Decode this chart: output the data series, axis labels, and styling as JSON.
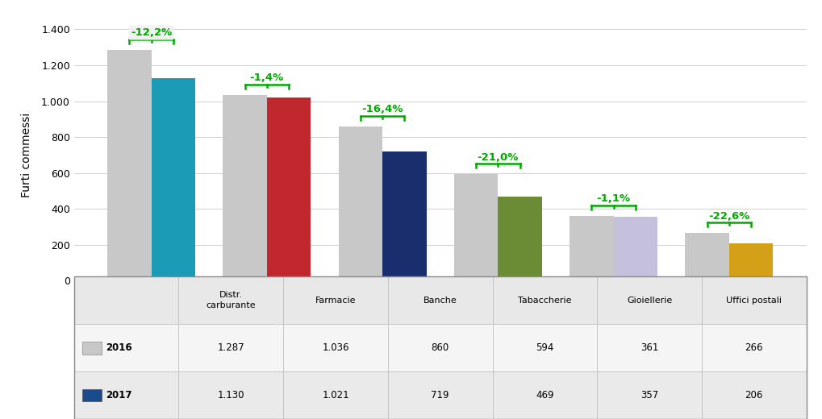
{
  "categories": [
    "Distr.\ncarburante",
    "Farmacie",
    "Banche",
    "Tabaccherie",
    "Gioiellerie",
    "Uffici postali"
  ],
  "categories_table": [
    "Distr.\ncarburante",
    "Farmacie",
    "Banche",
    "Tabaccherie",
    "Gioiellerie",
    "Uffici postali"
  ],
  "values_2016": [
    1287,
    1036,
    860,
    594,
    361,
    266
  ],
  "values_2017": [
    1130,
    1021,
    719,
    469,
    357,
    206
  ],
  "pct_changes": [
    "-12,2%",
    "-1,4%",
    "-16,4%",
    "-21,0%",
    "-1,1%",
    "-22,6%"
  ],
  "colors_2017": [
    "#1b9bb5",
    "#c0282e",
    "#1a2e6e",
    "#6b8c34",
    "#c5c0dc",
    "#d4a017"
  ],
  "color_2016": "#c8c8c8",
  "ylabel": "Furti commessi",
  "ylim": [
    0,
    1400
  ],
  "yticks": [
    0,
    200,
    400,
    600,
    800,
    1000,
    1200,
    1400
  ],
  "legend_2016_color": "#c8c8c8",
  "legend_2017_color": "#1a4b8c",
  "pct_color": "#00aa00",
  "bracket_color": "#00aa00",
  "background_color": "#ffffff",
  "table_values_2016": [
    "1.287",
    "1.036",
    "860",
    "594",
    "361",
    "266"
  ],
  "table_values_2017": [
    "1.130",
    "1.021",
    "719",
    "469",
    "357",
    "206"
  ]
}
